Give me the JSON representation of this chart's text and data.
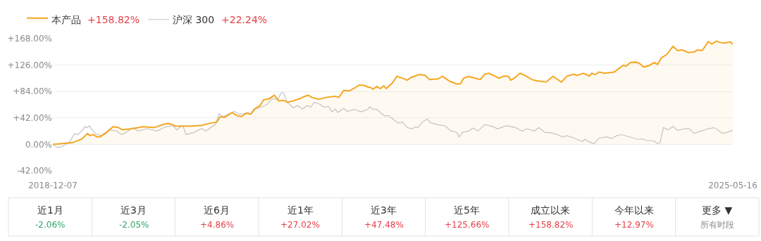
{
  "chart_data": {
    "type": "line",
    "legend": "top left",
    "grid": "y",
    "marker": "none",
    "xlim": [
      "2018-12-07",
      "2025-05-16"
    ],
    "xticks": [
      {
        "value": "2018-12-07",
        "label": "2018-12-07"
      },
      {
        "value": "2025-05-16",
        "label": "2025-05-16"
      }
    ],
    "ylim": [
      -42,
      168
    ],
    "yticks": [
      {
        "value": -42,
        "label": "-42.00%"
      },
      {
        "value": 0,
        "label": "0.00%"
      },
      {
        "value": 42,
        "label": "+42.00%"
      },
      {
        "value": 84,
        "label": "+84.00%"
      },
      {
        "value": 126,
        "label": "+126.00%"
      },
      {
        "value": 168,
        "label": "+168.00%"
      }
    ],
    "annotations": [
      "+158.82%",
      "+22.24%",
      "近1月",
      "-2.06%",
      "近3月",
      "-2.05%",
      "近6月",
      "+4.86%",
      "近1年",
      "+27.02%",
      "近3年",
      "+47.48%",
      "近5年",
      "+125.66%",
      "成立以来",
      "+158.82%",
      "今年以来",
      "+12.97%",
      "更多 ▼",
      "所有时段"
    ],
    "series": [
      {
        "name": "沪深 300",
        "color": "#c4c4c8",
        "x": [
          "2018-12-07",
          "2018-12-21",
          "2019-01-02",
          "2019-01-18",
          "2019-02-04",
          "2019-02-20",
          "2019-03-04",
          "2019-03-20",
          "2019-03-28",
          "2019-04-06",
          "2019-04-12",
          "2019-04-22",
          "2019-05-04",
          "2019-05-20",
          "2019-06-05",
          "2019-06-22",
          "2019-07-16",
          "2019-08-01",
          "2019-08-18",
          "2019-09-11",
          "2019-09-27",
          "2019-10-30",
          "2019-12-01",
          "2020-01-03",
          "2020-01-27",
          "2020-02-08",
          "2020-02-29",
          "2020-03-12",
          "2020-04-09",
          "2020-05-04",
          "2020-05-20",
          "2020-06-05",
          "2020-06-22",
          "2020-07-04",
          "2020-07-16",
          "2020-08-01",
          "2020-08-26",
          "2020-09-11",
          "2020-09-27",
          "2020-10-13",
          "2020-10-22",
          "2020-11-07",
          "2020-12-01",
          "2020-12-17",
          "2021-01-03",
          "2021-01-23",
          "2021-02-04",
          "2021-02-12",
          "2021-02-25",
          "2021-03-17",
          "2021-04-02",
          "2021-04-18",
          "2021-05-05",
          "2021-05-17",
          "2021-05-29",
          "2021-06-18",
          "2021-07-01",
          "2021-07-17",
          "2021-07-29",
          "2021-08-10",
          "2021-08-18",
          "2021-09-08",
          "2021-09-20",
          "2021-10-14",
          "2021-11-08",
          "2021-12-02",
          "2021-12-07",
          "2021-12-19",
          "2021-12-31",
          "2022-01-17",
          "2022-01-29",
          "2022-02-10",
          "2022-02-26",
          "2022-03-15",
          "2022-03-31",
          "2022-04-16",
          "2022-05-02",
          "2022-05-15",
          "2022-05-23",
          "2022-06-08",
          "2022-06-24",
          "2022-07-06",
          "2022-07-31",
          "2022-08-24",
          "2022-09-13",
          "2022-10-04",
          "2022-10-12",
          "2022-10-24",
          "2022-11-13",
          "2022-11-30",
          "2022-12-16",
          "2023-01-09",
          "2023-02-03",
          "2023-02-23",
          "2023-03-24",
          "2023-04-25",
          "2023-05-19",
          "2023-06-05",
          "2023-06-29",
          "2023-07-15",
          "2023-08-05",
          "2023-08-25",
          "2023-09-18",
          "2023-10-05",
          "2023-10-21",
          "2023-11-14",
          "2023-12-13",
          "2023-12-21",
          "2024-01-06",
          "2024-01-22",
          "2024-02-08",
          "2024-03-07",
          "2024-03-23",
          "2024-04-09",
          "2024-04-25",
          "2024-05-19",
          "2024-06-21",
          "2024-07-07",
          "2024-07-19",
          "2024-08-17",
          "2024-08-29",
          "2024-09-06",
          "2024-09-18",
          "2024-10-05",
          "2024-10-21",
          "2024-11-06",
          "2024-11-30",
          "2024-12-17",
          "2025-01-02",
          "2025-01-26",
          "2025-02-20",
          "2025-03-12",
          "2025-03-24",
          "2025-04-09",
          "2025-04-26",
          "2025-05-16"
        ],
        "values": [
          0,
          -4.8,
          -4.8,
          -1,
          4.4,
          17,
          15.5,
          23,
          28,
          26.6,
          29.5,
          23,
          17,
          13.7,
          15.5,
          23,
          21,
          15.5,
          19,
          26.6,
          21,
          25,
          21,
          28,
          30,
          23,
          30,
          15.5,
          19,
          25,
          21,
          26.6,
          32,
          48.7,
          44,
          47,
          52.4,
          48,
          48.7,
          50.6,
          48,
          56,
          60,
          63.5,
          72.7,
          71,
          82,
          82,
          67,
          58,
          61.7,
          56,
          61.7,
          59,
          67,
          63.5,
          59,
          60.5,
          51.7,
          56,
          50.6,
          57,
          52.4,
          55.4,
          51.7,
          56,
          59.8,
          55.4,
          56,
          48.7,
          45,
          45.8,
          39.5,
          34,
          35,
          26.6,
          24.7,
          28,
          26.6,
          35.8,
          40,
          34,
          31.4,
          29.5,
          21.8,
          19,
          11.8,
          19,
          21,
          25.8,
          21,
          31.4,
          28.5,
          24.7,
          29.5,
          26.6,
          21,
          24.7,
          21,
          26.6,
          19,
          18.5,
          15.5,
          11.8,
          13.7,
          10,
          4.4,
          8,
          3.7,
          0.7,
          10,
          11.8,
          9.2,
          13.7,
          15.5,
          12.5,
          8,
          8.8,
          6.3,
          5.2,
          0.7,
          2.6,
          26.6,
          23,
          28.5,
          22,
          24.7,
          24.7,
          17.4,
          21,
          24.7,
          26.6,
          23,
          17.4,
          19,
          22.24
        ]
      },
      {
        "name": "本产品",
        "type": "area",
        "color": "#f5a623",
        "x": [
          "2018-12-07",
          "2019-02-12",
          "2019-03-16",
          "2019-04-06",
          "2019-04-14",
          "2019-04-26",
          "2019-05-08",
          "2019-05-20",
          "2019-06-10",
          "2019-07-04",
          "2019-07-20",
          "2019-08-05",
          "2019-09-11",
          "2019-10-14",
          "2019-11-23",
          "2019-12-26",
          "2020-01-11",
          "2020-01-27",
          "2020-02-04",
          "2020-03-24",
          "2020-05-04",
          "2020-05-28",
          "2020-06-26",
          "2020-07-08",
          "2020-07-24",
          "2020-08-18",
          "2020-09-03",
          "2020-09-19",
          "2020-10-05",
          "2020-10-22",
          "2020-11-03",
          "2020-11-23",
          "2020-12-05",
          "2020-12-22",
          "2021-01-11",
          "2021-01-27",
          "2021-02-12",
          "2021-02-25",
          "2021-03-17",
          "2021-04-10",
          "2021-04-27",
          "2021-05-09",
          "2021-05-21",
          "2021-06-14",
          "2021-07-09",
          "2021-08-10",
          "2021-08-22",
          "2021-09-08",
          "2021-09-28",
          "2021-10-14",
          "2021-10-31",
          "2021-11-16",
          "2021-12-02",
          "2021-12-07",
          "2021-12-19",
          "2021-12-31",
          "2022-01-13",
          "2022-01-25",
          "2022-02-02",
          "2022-02-22",
          "2022-03-11",
          "2022-03-31",
          "2022-04-16",
          "2022-04-28",
          "2022-05-27",
          "2022-06-16",
          "2022-07-02",
          "2022-07-31",
          "2022-08-16",
          "2022-09-09",
          "2022-10-04",
          "2022-10-16",
          "2022-10-28",
          "2022-11-13",
          "2022-11-30",
          "2022-12-24",
          "2023-01-09",
          "2023-01-22",
          "2023-02-15",
          "2023-02-27",
          "2023-03-15",
          "2023-04-01",
          "2023-04-09",
          "2023-04-25",
          "2023-05-11",
          "2023-05-28",
          "2023-06-21",
          "2023-07-07",
          "2023-08-01",
          "2023-08-09",
          "2023-09-02",
          "2023-10-01",
          "2023-10-21",
          "2023-11-14",
          "2023-11-22",
          "2023-12-17",
          "2024-01-06",
          "2024-01-14",
          "2024-01-26",
          "2024-02-08",
          "2024-02-28",
          "2024-04-01",
          "2024-04-17",
          "2024-05-03",
          "2024-05-11",
          "2024-05-27",
          "2024-06-17",
          "2024-06-29",
          "2024-07-11",
          "2024-07-31",
          "2024-08-17",
          "2024-08-29",
          "2024-09-10",
          "2024-09-30",
          "2024-10-21",
          "2024-11-06",
          "2024-11-22",
          "2024-12-13",
          "2025-01-02",
          "2025-01-14",
          "2025-01-30",
          "2025-02-20",
          "2025-03-04",
          "2025-03-20",
          "2025-04-01",
          "2025-04-18",
          "2025-05-08",
          "2025-05-16"
        ],
        "values": [
          0,
          2.6,
          8,
          17,
          14,
          15.5,
          12,
          12,
          19,
          28,
          27,
          23,
          25,
          28,
          26.6,
          32,
          33,
          31,
          29,
          29,
          30,
          33,
          35.5,
          44,
          43,
          50.6,
          45.8,
          44,
          49.5,
          48,
          56,
          61.7,
          71,
          72,
          78,
          69,
          70,
          67,
          69,
          72.7,
          76.4,
          78,
          74.6,
          71.6,
          74.6,
          76.4,
          74.6,
          85.7,
          85,
          89,
          94,
          94,
          91,
          91,
          87.5,
          92,
          88.6,
          93,
          88.6,
          96.7,
          108,
          105,
          102,
          106,
          111,
          110,
          103,
          104,
          108,
          100.4,
          96,
          96,
          105,
          108,
          106,
          103,
          111.5,
          113,
          108,
          105,
          108.5,
          108,
          102,
          106.6,
          113,
          109.4,
          103,
          101,
          99.7,
          99,
          108,
          99,
          108.5,
          111.5,
          109.4,
          113,
          108.5,
          113,
          110.8,
          115,
          113,
          115,
          120.7,
          126,
          124,
          130,
          130.7,
          128,
          123,
          125.3,
          130,
          127,
          137,
          143,
          155.8,
          149,
          150,
          146,
          146.8,
          150,
          149,
          163,
          159.5,
          164,
          162,
          161,
          163,
          158.82
        ]
      }
    ]
  }
}
